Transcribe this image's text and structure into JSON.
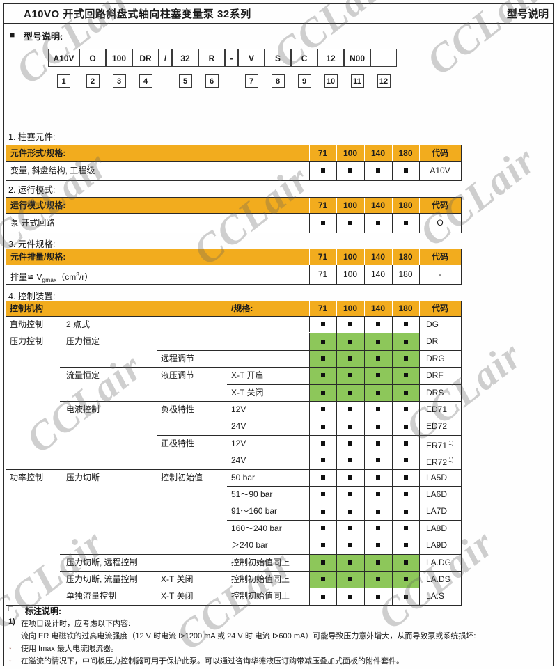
{
  "page": {
    "title": "A10VO 开式回路斜盘式轴向柱塞变量泵  32系列",
    "corner_label": "型号说明",
    "watermark": "CCLair"
  },
  "model": {
    "marker": "■",
    "label": "型号说明:",
    "boxes": [
      {
        "label": "A10V",
        "num": "1"
      },
      {
        "label": "O",
        "num": "2"
      },
      {
        "label": "100",
        "num": "3"
      },
      {
        "label": "DR",
        "num": "4"
      },
      {
        "label": "/",
        "num": ""
      },
      {
        "label": "32",
        "num": "5"
      },
      {
        "label": "R",
        "num": "6"
      },
      {
        "label": "-",
        "num": ""
      },
      {
        "label": "V",
        "num": "7"
      },
      {
        "label": "S",
        "num": "8"
      },
      {
        "label": "C",
        "num": "9"
      },
      {
        "label": "12",
        "num": "10"
      },
      {
        "label": "N00",
        "num": "11"
      },
      {
        "label": "",
        "num": "12"
      }
    ]
  },
  "colors": {
    "orange": "#F2AC1E",
    "green": "#8DC75A",
    "mark_square": "#111111",
    "bullet": "#8a4038"
  },
  "spec_columns": [
    "71",
    "100",
    "140",
    "180",
    "代码"
  ],
  "sections": [
    {
      "heading": "1.  柱塞元件:",
      "header_label": "元件形式/规格:",
      "row": {
        "label": "变量, 斜盘结构, 工程级",
        "marks": [
          "■",
          "■",
          "■",
          "■"
        ],
        "code": "A10V"
      }
    },
    {
      "heading": "2.  运行模式:",
      "header_label": "运行模式/规格:",
      "row": {
        "label": "泵  开式回路",
        "marks": [
          "■",
          "■",
          "■",
          "■"
        ],
        "code": "O"
      }
    },
    {
      "heading": "3.  元件规格:",
      "header_label": "元件排量/规格:",
      "row": {
        "label_parts": {
          "pre": "排量≌ V",
          "sub": "gmax",
          "mid": "（cm",
          "sup": "3",
          "post": "/r）"
        },
        "marks": [
          "71",
          "100",
          "140",
          "180"
        ],
        "code": "-"
      }
    }
  ],
  "control": {
    "heading": "4.  控制装置:",
    "header_left": "控制机构",
    "header_mid": "/规格:",
    "rows": [
      {
        "c1": "直动控制",
        "c2": "2 点式",
        "c3": "",
        "c4": "",
        "code": "DG",
        "green": false
      },
      {
        "c1": "压力控制",
        "c2": "压力恒定",
        "c3": "",
        "c4": "",
        "code": "DR",
        "green": true,
        "dashed_top": true
      },
      {
        "c1": "",
        "c2": "",
        "c3": "远程调节",
        "c4": "",
        "code": "DRG",
        "green": true
      },
      {
        "c1": "",
        "c2": "流量恒定",
        "c3": "液压调节",
        "c4": "X-T 开启",
        "code": "DRF",
        "green": true
      },
      {
        "c1": "",
        "c2": "",
        "c3": "",
        "c4": "X-T 关闭",
        "code": "DRS",
        "green": true
      },
      {
        "c1": "",
        "c2": "电液控制",
        "c3": "负极特性",
        "c4": "12V",
        "code": "ED71",
        "green": false
      },
      {
        "c1": "",
        "c2": "",
        "c3": "",
        "c4": "24V",
        "code": "ED72",
        "green": false
      },
      {
        "c1": "",
        "c2": "",
        "c3": "正极特性",
        "c4": "12V",
        "code": "ER71",
        "sup": "1)",
        "green": false
      },
      {
        "c1": "",
        "c2": "",
        "c3": "",
        "c4": "24V",
        "code": "ER72",
        "sup": "1)",
        "green": false
      },
      {
        "c1": "功率控制",
        "c2": "压力切断",
        "c3": "控制初始值",
        "c4": "50 bar",
        "code": "LA5D",
        "green": false
      },
      {
        "c1": "",
        "c2": "",
        "c3": "",
        "c4": "51～90 bar",
        "code": "LA6D",
        "green": false
      },
      {
        "c1": "",
        "c2": "",
        "c3": "",
        "c4": "91～160 bar",
        "code": "LA7D",
        "green": false
      },
      {
        "c1": "",
        "c2": "",
        "c3": "",
        "c4": "160～240 bar",
        "code": "LA8D",
        "green": false
      },
      {
        "c1": "",
        "c2": "",
        "c3": "",
        "c4": "＞240 bar",
        "code": "LA9D",
        "green": false
      },
      {
        "c1": "",
        "c2": "压力切断, 远程控制",
        "c3": "",
        "c4": "控制初始值同上",
        "code": "LA.DG",
        "green": true
      },
      {
        "c1": "",
        "c2": "压力切断, 流量控制",
        "c3": "X-T 关闭",
        "c4": "控制初始值同上",
        "code": "LA.DS",
        "green": true
      },
      {
        "c1": "",
        "c2": "单独流量控制",
        "c3": "X-T 关闭",
        "c4": "控制初始值同上",
        "code": "LA.S",
        "green": false
      }
    ]
  },
  "notes": {
    "marker": "□",
    "title": "标注说明:",
    "lines": [
      {
        "prefix": "1)",
        "text": "在项目设计时，应考虑以下内容:"
      },
      {
        "prefix": "",
        "text": "流向 ER 电磁铁的过高电流强度（12 V 时电流 I>1200 mA 或 24 V 时 电流 I>600 mA）可能导致压力意外增大，从而导致泵或系统损坏:"
      },
      {
        "prefix": "↓",
        "text": "使用 Imax 最大电流限流器。"
      },
      {
        "prefix": "↓",
        "text": "在溢流的情况下，中间板压力控制器可用于保护此泵。可以通过咨询华德液压订购带减压叠加式面板的附件套件。"
      }
    ]
  }
}
